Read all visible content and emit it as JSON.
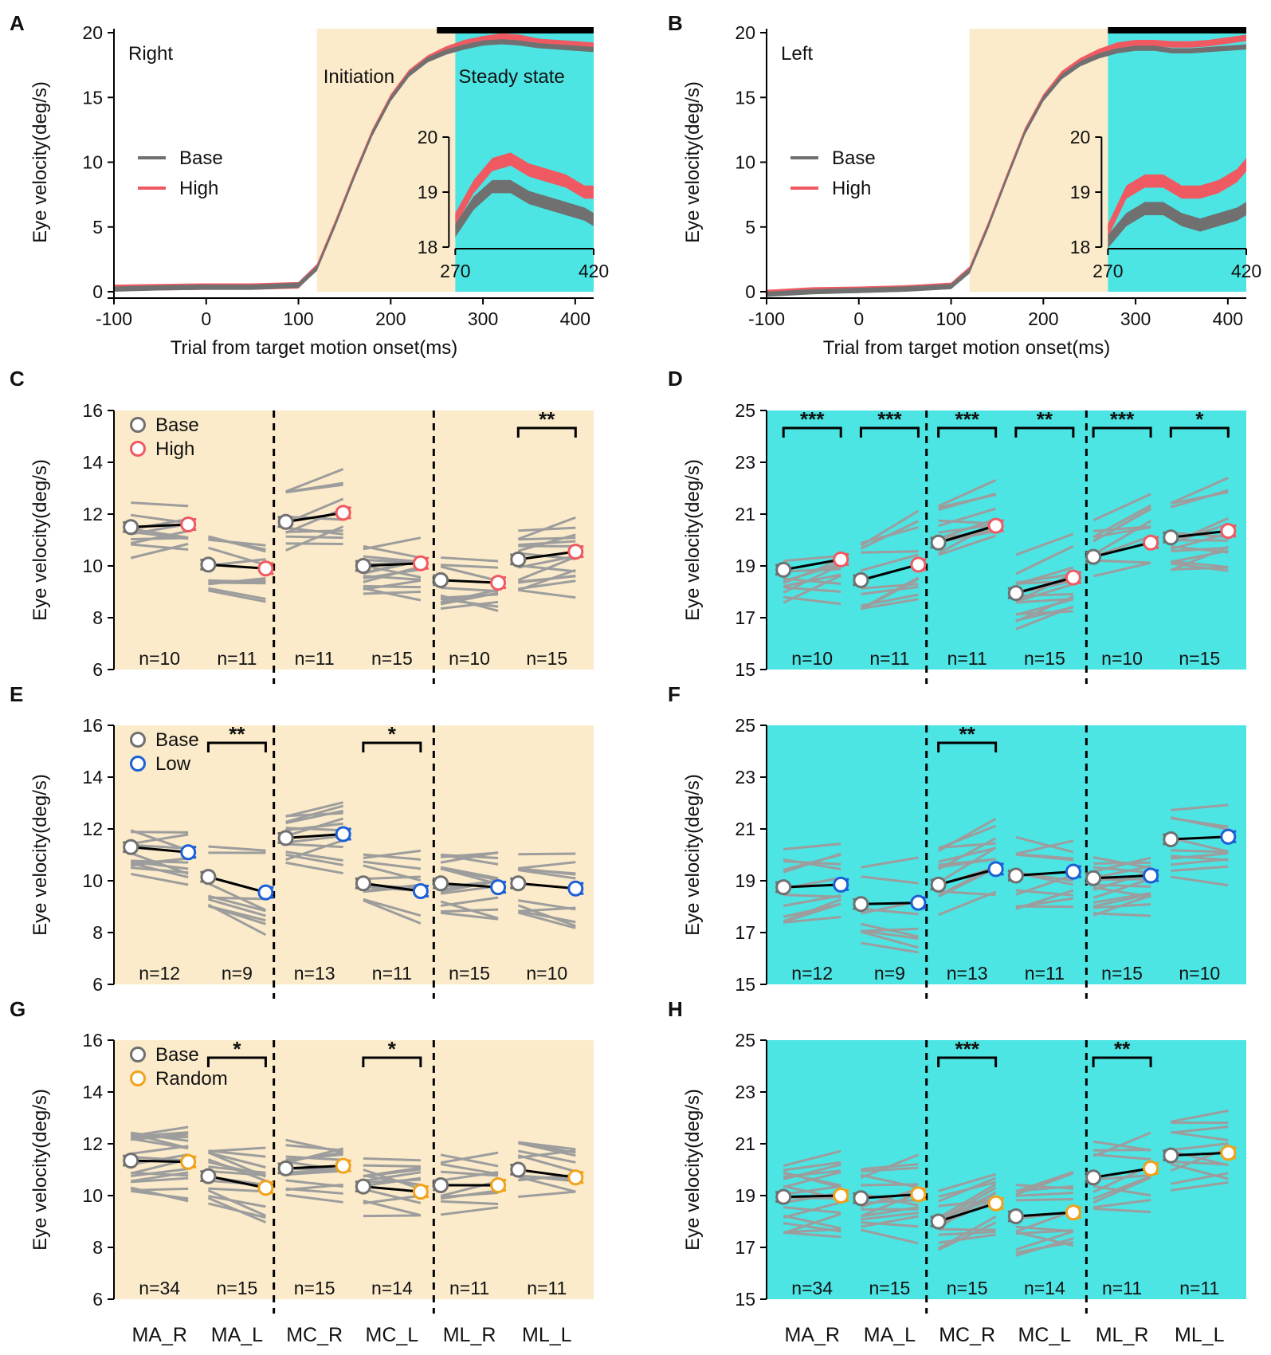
{
  "figure": {
    "x_labels": [
      "MA_R",
      "MA_L",
      "MC_R",
      "MC_L",
      "ML_R",
      "ML_L"
    ]
  },
  "colors": {
    "base": "#707070",
    "high": "#ef5a62",
    "low": "#1d5fd6",
    "random": "#f0a21c",
    "initiation_bg": "#fbebca",
    "steady_bg": "#4de4e4",
    "subject_line": "#9d9d9d"
  },
  "chart_data": [
    {
      "panel": "A",
      "type": "line",
      "title": "Right",
      "xlabel": "Trial from target motion onset(ms)",
      "ylabel": "Eye velocity(deg/s)",
      "xlim": [
        -100,
        420
      ],
      "ylim": [
        0,
        20
      ],
      "xticks": [
        -100,
        0,
        100,
        200,
        300,
        400
      ],
      "yticks": [
        0,
        5,
        10,
        15,
        20
      ],
      "regions": [
        {
          "label": "Initiation",
          "from": 120,
          "to": 270
        },
        {
          "label": "Steady state",
          "from": 270,
          "to": 420
        }
      ],
      "legend": [
        "Base",
        "High"
      ],
      "series": [
        {
          "name": "Base",
          "x": [
            -100,
            -50,
            0,
            50,
            100,
            120,
            140,
            160,
            180,
            200,
            220,
            240,
            260,
            280,
            300,
            320,
            340,
            360,
            380,
            400,
            420
          ],
          "y": [
            0.2,
            0.3,
            0.35,
            0.35,
            0.5,
            1.8,
            5.2,
            8.8,
            12.2,
            14.9,
            16.8,
            17.9,
            18.5,
            18.9,
            19.2,
            19.3,
            19.2,
            19.0,
            18.9,
            18.8,
            18.7
          ]
        },
        {
          "name": "High",
          "x": [
            -100,
            -50,
            0,
            50,
            100,
            120,
            140,
            160,
            180,
            200,
            220,
            240,
            260,
            280,
            300,
            320,
            340,
            360,
            380,
            400,
            420
          ],
          "y": [
            0.3,
            0.35,
            0.4,
            0.4,
            0.5,
            1.9,
            5.3,
            8.9,
            12.3,
            15.0,
            16.9,
            18.0,
            18.7,
            19.2,
            19.5,
            19.7,
            19.6,
            19.3,
            19.2,
            19.1,
            19.0
          ]
        }
      ],
      "inset": {
        "xlim": [
          270,
          420
        ],
        "ylim": [
          18,
          20
        ],
        "xticks": [
          270,
          420
        ],
        "yticks": [
          18,
          19,
          20
        ],
        "base": {
          "x": [
            270,
            290,
            310,
            330,
            350,
            370,
            390,
            410,
            420
          ],
          "y": [
            18.3,
            18.8,
            19.1,
            19.1,
            18.9,
            18.8,
            18.7,
            18.6,
            18.5
          ]
        },
        "high": {
          "x": [
            270,
            290,
            310,
            330,
            350,
            370,
            390,
            410,
            420
          ],
          "y": [
            18.5,
            19.1,
            19.5,
            19.6,
            19.4,
            19.3,
            19.2,
            19.0,
            19.0
          ]
        }
      }
    },
    {
      "panel": "B",
      "type": "line",
      "title": "Left",
      "xlabel": "Trial from target motion onset(ms)",
      "ylabel": "Eye velocity(deg/s)",
      "xlim": [
        -100,
        420
      ],
      "ylim": [
        0,
        20
      ],
      "xticks": [
        -100,
        0,
        100,
        200,
        300,
        400
      ],
      "yticks": [
        0,
        5,
        10,
        15,
        20
      ],
      "regions": [
        {
          "label": "",
          "from": 120,
          "to": 270
        },
        {
          "label": "",
          "from": 270,
          "to": 420
        }
      ],
      "legend": [
        "Base",
        "High"
      ],
      "series": [
        {
          "name": "Base",
          "x": [
            -100,
            -50,
            0,
            50,
            100,
            120,
            140,
            160,
            180,
            200,
            220,
            240,
            260,
            280,
            300,
            320,
            340,
            360,
            380,
            400,
            420
          ],
          "y": [
            -0.2,
            0.0,
            0.1,
            0.2,
            0.4,
            1.6,
            5.0,
            8.7,
            12.3,
            14.9,
            16.6,
            17.6,
            18.2,
            18.6,
            18.8,
            18.8,
            18.6,
            18.6,
            18.7,
            18.8,
            18.9
          ]
        },
        {
          "name": "High",
          "x": [
            -100,
            -50,
            0,
            50,
            100,
            120,
            140,
            160,
            180,
            200,
            220,
            240,
            260,
            280,
            300,
            320,
            340,
            360,
            380,
            400,
            420
          ],
          "y": [
            -0.1,
            0.1,
            0.15,
            0.25,
            0.45,
            1.7,
            5.1,
            8.8,
            12.4,
            15.0,
            16.8,
            17.8,
            18.5,
            19.0,
            19.2,
            19.2,
            19.1,
            19.1,
            19.2,
            19.4,
            19.6
          ]
        }
      ],
      "inset": {
        "xlim": [
          270,
          420
        ],
        "ylim": [
          18,
          20
        ],
        "xticks": [
          270,
          420
        ],
        "yticks": [
          18,
          19,
          20
        ],
        "base": {
          "x": [
            270,
            290,
            310,
            330,
            350,
            370,
            390,
            410,
            420
          ],
          "y": [
            18.1,
            18.5,
            18.7,
            18.7,
            18.5,
            18.4,
            18.5,
            18.6,
            18.7
          ]
        },
        "high": {
          "x": [
            270,
            290,
            310,
            330,
            350,
            370,
            390,
            410,
            420
          ],
          "y": [
            18.3,
            19.0,
            19.2,
            19.2,
            19.0,
            19.0,
            19.1,
            19.3,
            19.5
          ]
        }
      }
    },
    {
      "panel": "C",
      "type": "scatter",
      "phase": "initiation",
      "ylabel": "Eye velocity(deg/s)",
      "ylim": [
        6,
        16
      ],
      "yticks": [
        6,
        8,
        10,
        12,
        14,
        16
      ],
      "legend": [
        "Base",
        "High"
      ],
      "condition": "High",
      "groups": [
        {
          "base": 11.5,
          "cond": 11.6,
          "n": "n=10",
          "sig": ""
        },
        {
          "base": 10.05,
          "cond": 9.9,
          "n": "n=11",
          "sig": ""
        },
        {
          "base": 11.7,
          "cond": 12.05,
          "n": "n=11",
          "sig": ""
        },
        {
          "base": 10.0,
          "cond": 10.1,
          "n": "n=15",
          "sig": ""
        },
        {
          "base": 9.45,
          "cond": 9.35,
          "n": "n=10",
          "sig": ""
        },
        {
          "base": 10.25,
          "cond": 10.55,
          "n": "n=15",
          "sig": "**"
        }
      ]
    },
    {
      "panel": "D",
      "type": "scatter",
      "phase": "steady",
      "ylabel": "Eye velocity(deg/s)",
      "ylim": [
        15,
        25
      ],
      "yticks": [
        15,
        17,
        19,
        21,
        23,
        25
      ],
      "condition": "High",
      "groups": [
        {
          "base": 18.85,
          "cond": 19.25,
          "n": "n=10",
          "sig": "***"
        },
        {
          "base": 18.45,
          "cond": 19.05,
          "n": "n=11",
          "sig": "***"
        },
        {
          "base": 19.9,
          "cond": 20.55,
          "n": "n=11",
          "sig": "***"
        },
        {
          "base": 17.95,
          "cond": 18.55,
          "n": "n=15",
          "sig": "**"
        },
        {
          "base": 19.35,
          "cond": 19.9,
          "n": "n=10",
          "sig": "***"
        },
        {
          "base": 20.1,
          "cond": 20.35,
          "n": "n=15",
          "sig": "*"
        }
      ]
    },
    {
      "panel": "E",
      "type": "scatter",
      "phase": "initiation",
      "ylabel": "Eye velocity(deg/s)",
      "ylim": [
        6,
        16
      ],
      "yticks": [
        6,
        8,
        10,
        12,
        14,
        16
      ],
      "legend": [
        "Base",
        "Low"
      ],
      "condition": "Low",
      "groups": [
        {
          "base": 11.3,
          "cond": 11.1,
          "n": "n=12",
          "sig": ""
        },
        {
          "base": 10.15,
          "cond": 9.55,
          "n": "n=9",
          "sig": "**"
        },
        {
          "base": 11.65,
          "cond": 11.8,
          "n": "n=13",
          "sig": ""
        },
        {
          "base": 9.9,
          "cond": 9.6,
          "n": "n=11",
          "sig": "*"
        },
        {
          "base": 9.9,
          "cond": 9.75,
          "n": "n=15",
          "sig": ""
        },
        {
          "base": 9.9,
          "cond": 9.7,
          "n": "n=10",
          "sig": ""
        }
      ]
    },
    {
      "panel": "F",
      "type": "scatter",
      "phase": "steady",
      "ylabel": "Eye velocity(deg/s)",
      "ylim": [
        15,
        25
      ],
      "yticks": [
        15,
        17,
        19,
        21,
        23,
        25
      ],
      "condition": "Low",
      "groups": [
        {
          "base": 18.75,
          "cond": 18.85,
          "n": "n=12",
          "sig": ""
        },
        {
          "base": 18.1,
          "cond": 18.15,
          "n": "n=9",
          "sig": ""
        },
        {
          "base": 18.85,
          "cond": 19.45,
          "n": "n=13",
          "sig": "**"
        },
        {
          "base": 19.2,
          "cond": 19.35,
          "n": "n=11",
          "sig": ""
        },
        {
          "base": 19.1,
          "cond": 19.2,
          "n": "n=15",
          "sig": ""
        },
        {
          "base": 20.6,
          "cond": 20.7,
          "n": "n=10",
          "sig": ""
        }
      ]
    },
    {
      "panel": "G",
      "type": "scatter",
      "phase": "initiation",
      "ylabel": "Eye velocity(deg/s)",
      "ylim": [
        6,
        16
      ],
      "yticks": [
        6,
        8,
        10,
        12,
        14,
        16
      ],
      "legend": [
        "Base",
        "Random"
      ],
      "condition": "Random",
      "groups": [
        {
          "base": 11.35,
          "cond": 11.3,
          "n": "n=34",
          "sig": ""
        },
        {
          "base": 10.75,
          "cond": 10.3,
          "n": "n=15",
          "sig": "*"
        },
        {
          "base": 11.05,
          "cond": 11.15,
          "n": "n=15",
          "sig": ""
        },
        {
          "base": 10.35,
          "cond": 10.15,
          "n": "n=14",
          "sig": "*"
        },
        {
          "base": 10.4,
          "cond": 10.4,
          "n": "n=11",
          "sig": ""
        },
        {
          "base": 11.0,
          "cond": 10.7,
          "n": "n=11",
          "sig": ""
        }
      ]
    },
    {
      "panel": "H",
      "type": "scatter",
      "phase": "steady",
      "ylabel": "Eye velocity(deg/s)",
      "ylim": [
        15,
        25
      ],
      "yticks": [
        15,
        17,
        19,
        21,
        23,
        25
      ],
      "condition": "Random",
      "groups": [
        {
          "base": 18.95,
          "cond": 19.0,
          "n": "n=34",
          "sig": ""
        },
        {
          "base": 18.9,
          "cond": 19.05,
          "n": "n=15",
          "sig": ""
        },
        {
          "base": 18.0,
          "cond": 18.7,
          "n": "n=15",
          "sig": "***"
        },
        {
          "base": 18.2,
          "cond": 18.35,
          "n": "n=14",
          "sig": ""
        },
        {
          "base": 19.7,
          "cond": 20.05,
          "n": "n=11",
          "sig": "**"
        },
        {
          "base": 20.55,
          "cond": 20.65,
          "n": "n=11",
          "sig": ""
        }
      ]
    }
  ]
}
